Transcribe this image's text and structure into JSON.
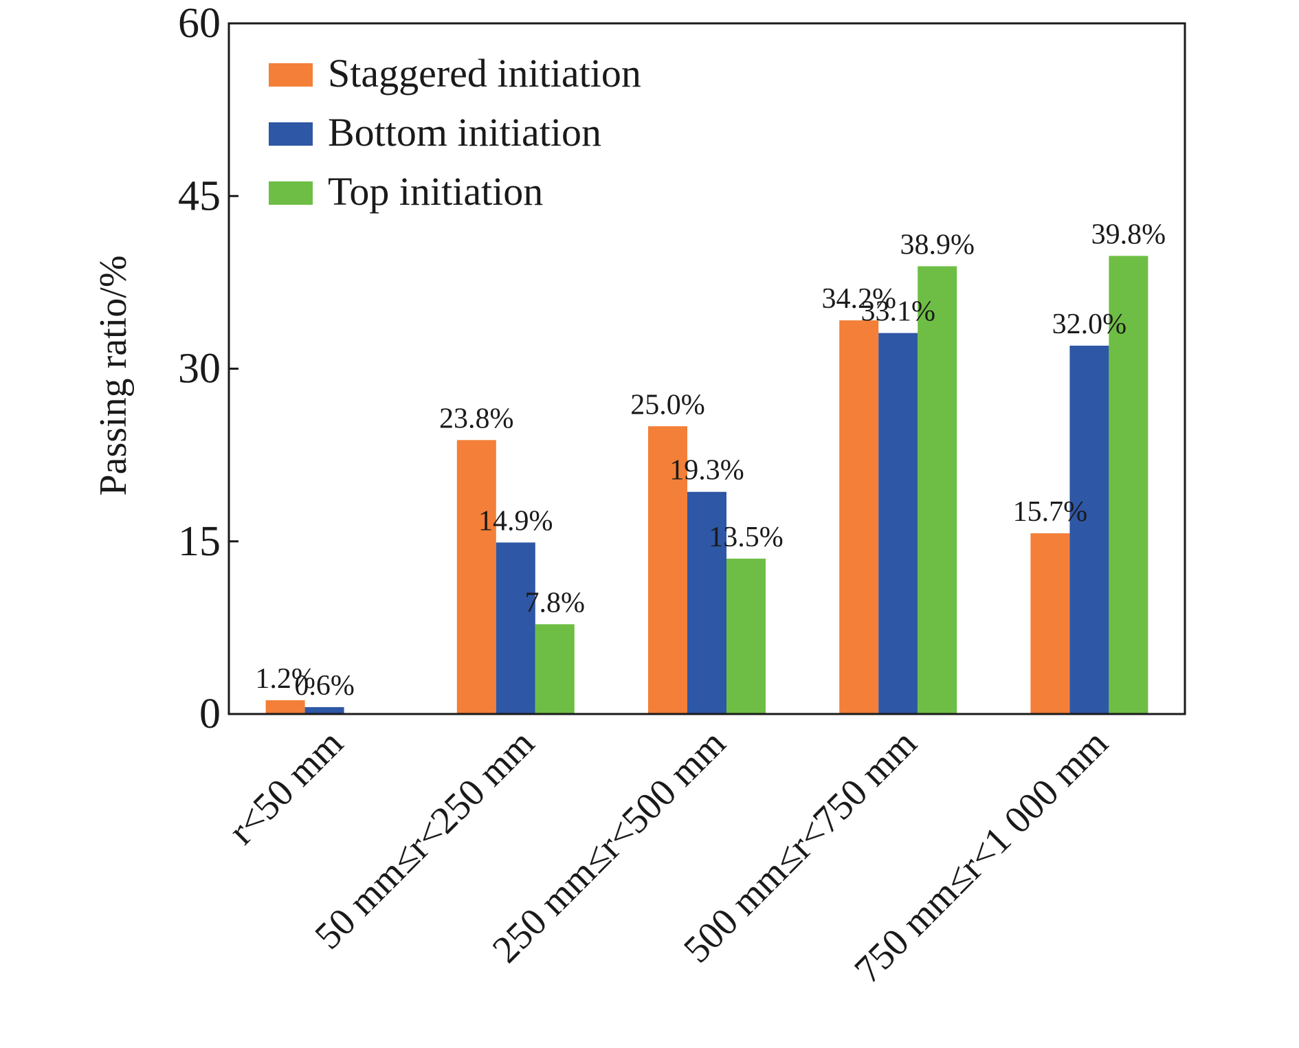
{
  "chart_data": {
    "type": "bar",
    "title": "",
    "xlabel": "",
    "ylabel": "Passing ratio/%",
    "ylim": [
      0,
      60
    ],
    "yticks": [
      0,
      15,
      30,
      45,
      60
    ],
    "grid": false,
    "legend_position": "top-left",
    "categories": [
      "r<50 mm",
      "50 mm≤r<250 mm",
      "250 mm≤r<500 mm",
      "500 mm≤r<750 mm",
      "750 mm≤r<1 000 mm"
    ],
    "series": [
      {
        "name": "Staggered initiation",
        "color": "#F37F38",
        "values": [
          1.2,
          23.8,
          25.0,
          34.2,
          15.7
        ],
        "labels": [
          "1.2%",
          "23.8%",
          "25.0%",
          "34.2%",
          "15.7%"
        ]
      },
      {
        "name": "Bottom initiation",
        "color": "#2E57A6",
        "values": [
          0.6,
          14.9,
          19.3,
          33.1,
          32.0
        ],
        "labels": [
          "0.6%",
          "14.9%",
          "19.3%",
          "33.1%",
          "32.0%"
        ]
      },
      {
        "name": "Top initiation",
        "color": "#6EBE45",
        "values": [
          0,
          7.8,
          13.5,
          38.9,
          39.8
        ],
        "labels": [
          "",
          "7.8%",
          "13.5%",
          "38.9%",
          "39.8%"
        ]
      }
    ]
  }
}
